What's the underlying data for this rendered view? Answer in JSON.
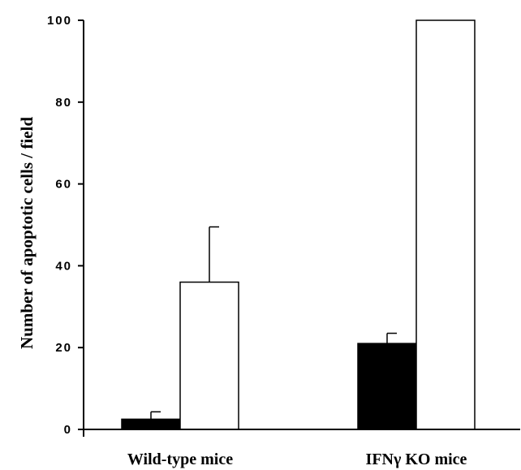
{
  "chart_data": {
    "type": "bar",
    "title": "",
    "xlabel": "",
    "ylabel": "Number of apoptotic cells / field",
    "categories": [
      "Wild-type mice",
      "IFNγ KO mice"
    ],
    "series": [
      {
        "fill": "#000000",
        "values": [
          2.5,
          21
        ],
        "errors": [
          1.8,
          2.5
        ]
      },
      {
        "fill": "#ffffff",
        "values": [
          36,
          100
        ],
        "errors": [
          13.5,
          0
        ]
      }
    ],
    "ylim": [
      0,
      100
    ],
    "yticks": [
      0,
      20,
      40,
      60,
      80,
      100
    ],
    "grid": false
  }
}
